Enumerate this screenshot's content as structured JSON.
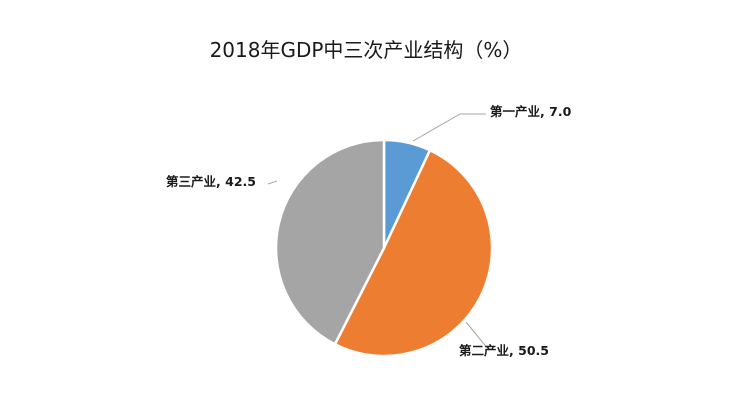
{
  "chart_data": {
    "type": "pie",
    "title": "2018年GDP中三次产业结构（%）",
    "slices": [
      {
        "label": "第一产业",
        "value": 7.0,
        "value_text": "7.0",
        "color": "#5b9bd5"
      },
      {
        "label": "第二产业",
        "value": 50.5,
        "value_text": "50.5",
        "color": "#ed7d31"
      },
      {
        "label": "第三产业",
        "value": 42.5,
        "value_text": "42.5",
        "color": "#a5a5a5"
      }
    ],
    "start_angle": "12 o'clock",
    "direction": "clockwise",
    "label_format": "category, value",
    "legend": "none"
  }
}
